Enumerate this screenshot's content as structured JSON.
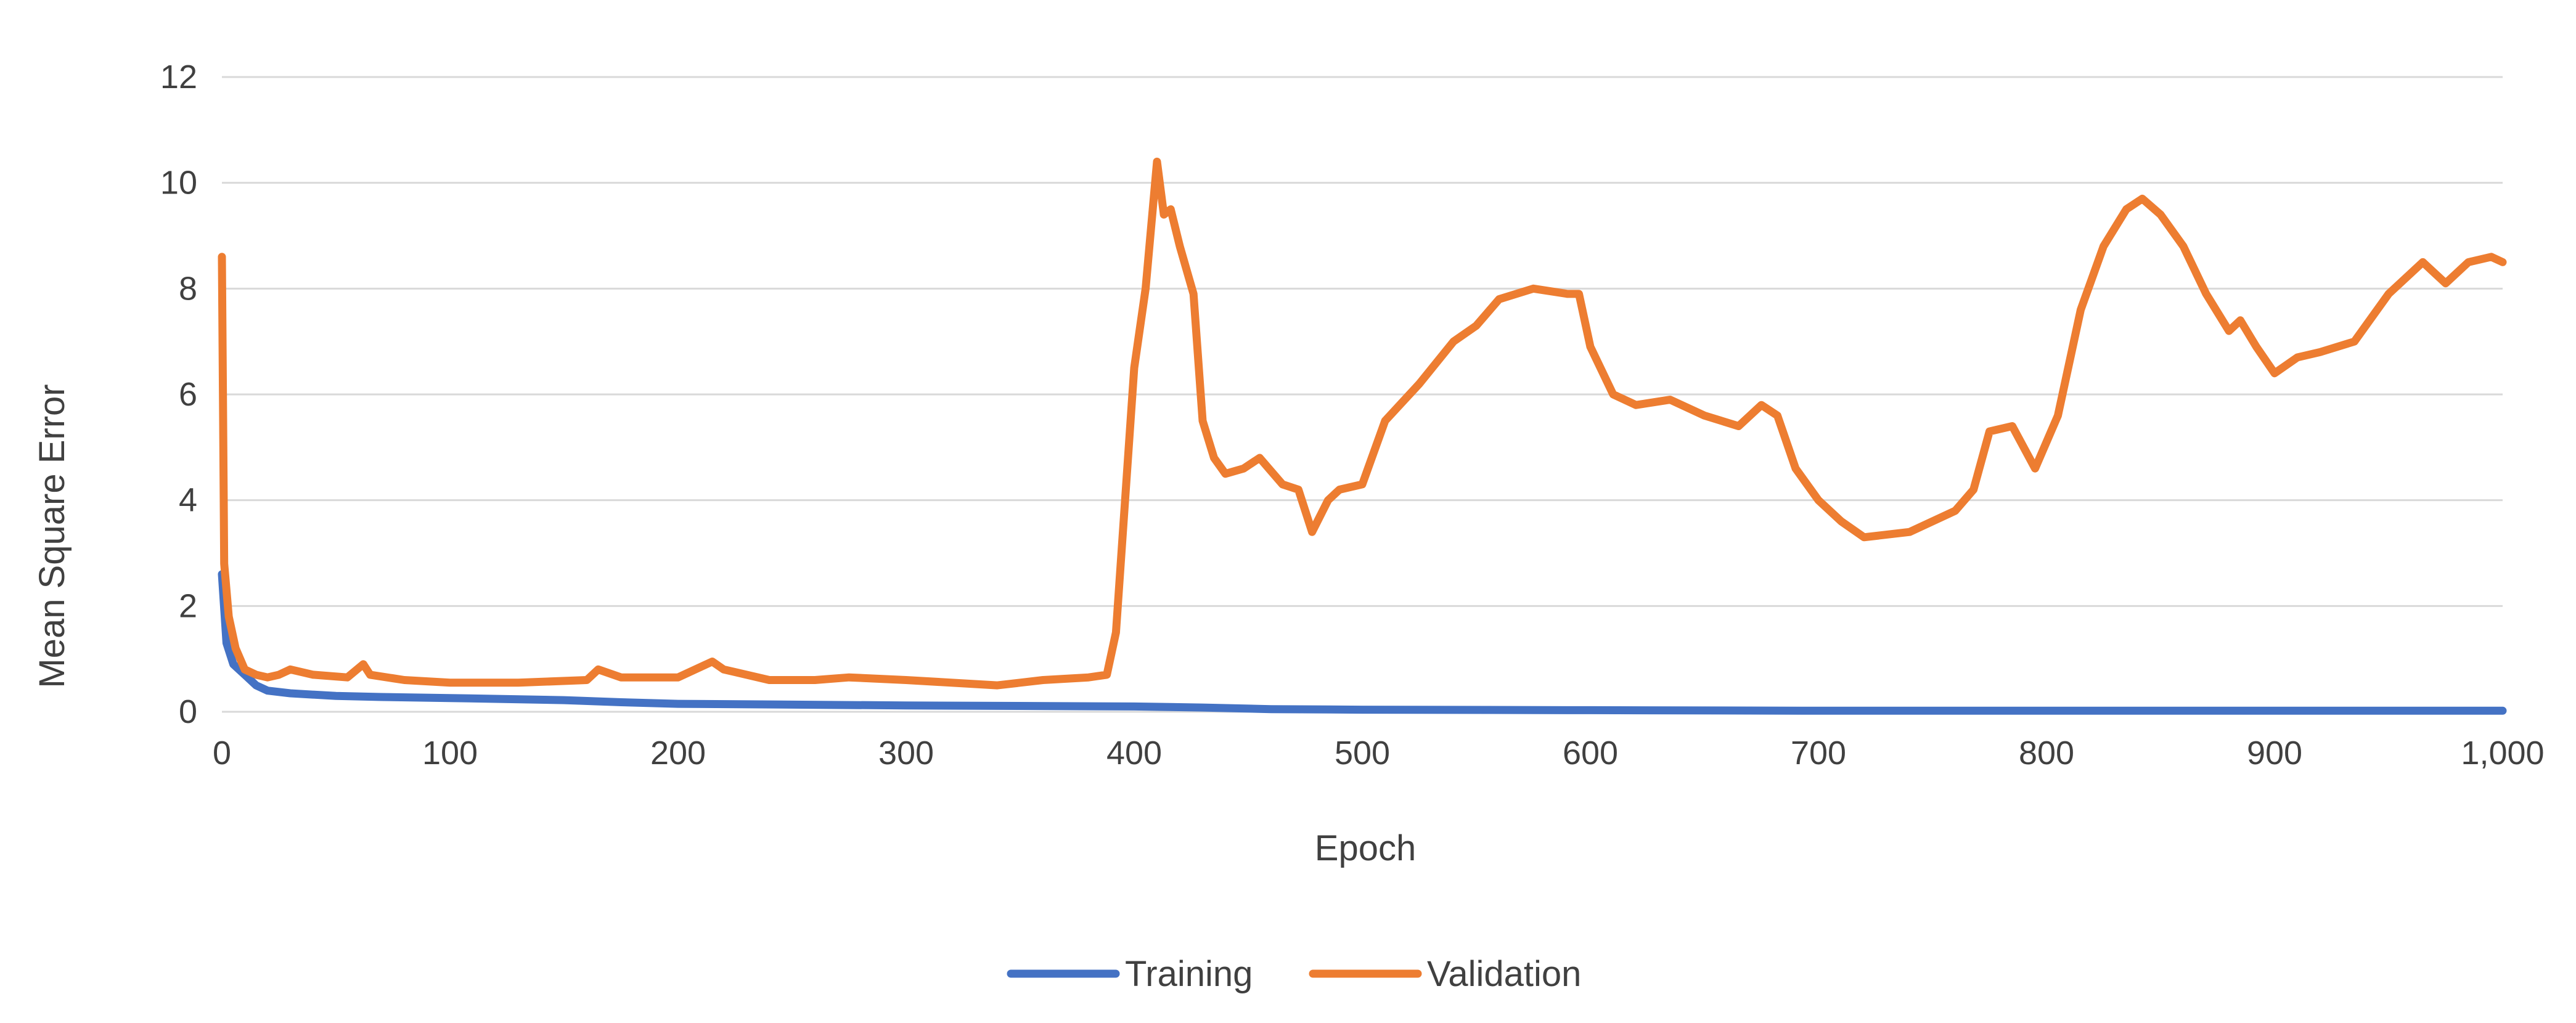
{
  "chart_data": {
    "type": "line",
    "title": "",
    "xlabel": "Epoch",
    "ylabel": "Mean Square Error",
    "xlim": [
      0,
      1000
    ],
    "ylim": [
      0,
      12
    ],
    "x_ticks": [
      "0",
      "100",
      "200",
      "300",
      "400",
      "500",
      "600",
      "700",
      "800",
      "900",
      "1,000"
    ],
    "y_ticks": [
      "0",
      "2",
      "4",
      "6",
      "8",
      "10",
      "12"
    ],
    "grid": true,
    "legend_position": "bottom",
    "series": [
      {
        "name": "Training",
        "color": "#4472C4",
        "x": [
          0,
          2,
          5,
          10,
          15,
          20,
          30,
          50,
          70,
          100,
          150,
          175,
          200,
          300,
          400,
          430,
          460,
          500,
          600,
          700,
          800,
          900,
          1000
        ],
        "y": [
          2.6,
          1.3,
          0.9,
          0.7,
          0.5,
          0.4,
          0.35,
          0.3,
          0.28,
          0.26,
          0.22,
          0.18,
          0.15,
          0.12,
          0.1,
          0.08,
          0.05,
          0.04,
          0.03,
          0.02,
          0.02,
          0.02,
          0.02
        ]
      },
      {
        "name": "Validation",
        "color": "#ED7D31",
        "x": [
          0,
          1,
          3,
          6,
          10,
          15,
          20,
          25,
          30,
          40,
          55,
          62,
          65,
          80,
          100,
          130,
          160,
          165,
          175,
          200,
          215,
          220,
          225,
          240,
          260,
          275,
          300,
          340,
          360,
          380,
          388,
          392,
          396,
          400,
          405,
          410,
          413,
          416,
          420,
          426,
          430,
          435,
          440,
          448,
          455,
          465,
          472,
          478,
          485,
          490,
          500,
          510,
          525,
          540,
          550,
          560,
          575,
          590,
          595,
          600,
          610,
          620,
          635,
          650,
          665,
          675,
          682,
          690,
          700,
          710,
          720,
          740,
          760,
          768,
          775,
          785,
          795,
          805,
          815,
          825,
          835,
          842,
          850,
          860,
          870,
          880,
          885,
          892,
          900,
          910,
          920,
          935,
          950,
          965,
          975,
          985,
          995,
          1000
        ],
        "y": [
          8.6,
          2.8,
          1.8,
          1.2,
          0.8,
          0.7,
          0.65,
          0.7,
          0.8,
          0.7,
          0.65,
          0.9,
          0.7,
          0.6,
          0.55,
          0.55,
          0.6,
          0.8,
          0.65,
          0.65,
          0.95,
          0.8,
          0.75,
          0.6,
          0.6,
          0.65,
          0.6,
          0.5,
          0.6,
          0.65,
          0.7,
          1.5,
          4.0,
          6.5,
          8.0,
          10.4,
          9.4,
          9.5,
          8.8,
          7.9,
          5.5,
          4.8,
          4.5,
          4.6,
          4.8,
          4.3,
          4.2,
          3.4,
          4.0,
          4.2,
          4.3,
          5.5,
          6.2,
          7.0,
          7.3,
          7.8,
          8.0,
          7.9,
          7.9,
          6.9,
          6.0,
          5.8,
          5.9,
          5.6,
          5.4,
          5.8,
          5.6,
          4.6,
          4.0,
          3.6,
          3.3,
          3.4,
          3.8,
          4.2,
          5.3,
          5.4,
          4.6,
          5.6,
          7.6,
          8.8,
          9.5,
          9.7,
          9.4,
          8.8,
          7.9,
          7.2,
          7.4,
          6.9,
          6.4,
          6.7,
          6.8,
          7.0,
          7.9,
          8.5,
          8.1,
          8.5,
          8.6,
          8.5
        ]
      }
    ]
  }
}
